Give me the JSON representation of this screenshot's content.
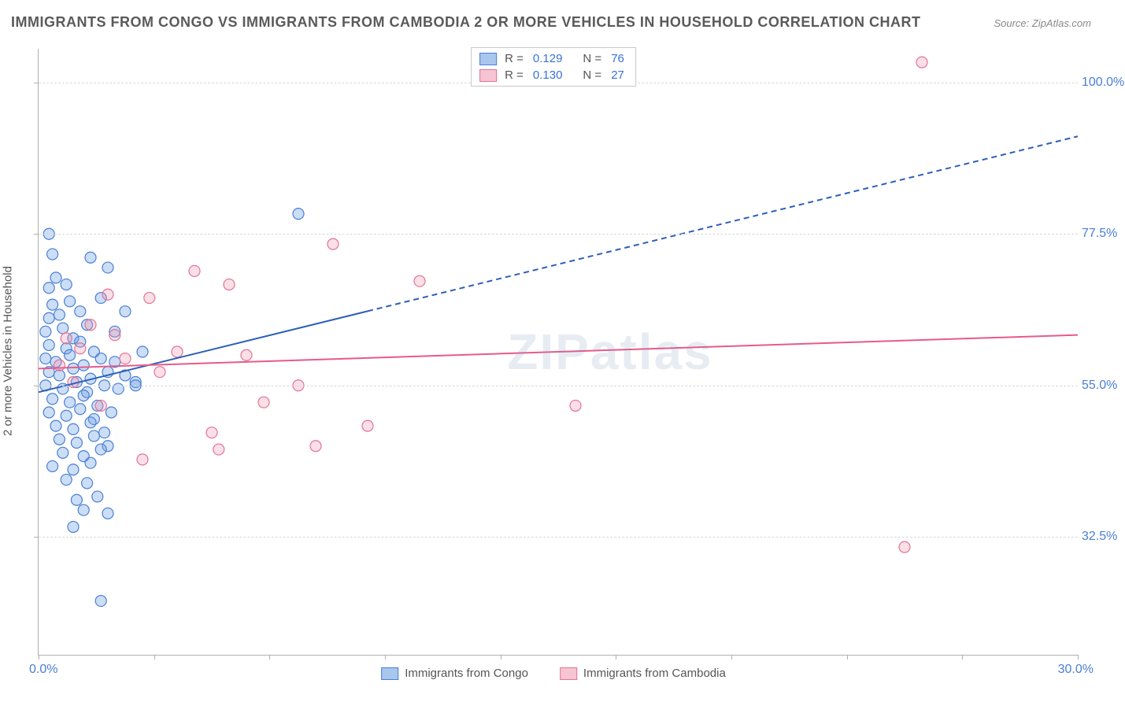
{
  "title": "IMMIGRANTS FROM CONGO VS IMMIGRANTS FROM CAMBODIA 2 OR MORE VEHICLES IN HOUSEHOLD CORRELATION CHART",
  "source_prefix": "Source: ",
  "source_name": "ZipAtlas.com",
  "y_axis_label": "2 or more Vehicles in Household",
  "watermark": "ZIPatlas",
  "chart": {
    "type": "scatter",
    "xlim": [
      0,
      30
    ],
    "ylim": [
      15,
      105
    ],
    "x_min_label": "0.0%",
    "x_max_label": "30.0%",
    "x_ticks": [
      0,
      3.33,
      6.67,
      10,
      13.33,
      16.67,
      20,
      23.33,
      26.67,
      30
    ],
    "y_ticks_minor": [
      32.5,
      55.0,
      77.5,
      100.0
    ],
    "y_gridlines": [
      {
        "value": 32.5,
        "label": "32.5%"
      },
      {
        "value": 55.0,
        "label": "55.0%"
      },
      {
        "value": 77.5,
        "label": "77.5%"
      },
      {
        "value": 100.0,
        "label": "100.0%"
      }
    ],
    "grid_color": "#d8d8d8",
    "axis_color": "#b0b0b0",
    "background_color": "#ffffff",
    "marker_radius": 7,
    "marker_stroke_width": 1.2,
    "series": [
      {
        "id": "congo",
        "name": "Immigrants from Congo",
        "fill": "rgba(110,160,225,0.35)",
        "stroke": "#4a7fd6",
        "swatch_fill": "#a9c6ed",
        "swatch_border": "#4a7fd6",
        "R": "0.129",
        "N": "76",
        "trend": {
          "x1": 0,
          "y1": 54.0,
          "x2": 30,
          "y2": 92.0,
          "solid_until_x": 9.5,
          "stroke": "#2d5fb8",
          "width": 2,
          "dash": "7,5"
        },
        "points": [
          [
            0.3,
            77.5
          ],
          [
            0.4,
            74.5
          ],
          [
            0.5,
            71.0
          ],
          [
            0.3,
            69.5
          ],
          [
            0.8,
            70.0
          ],
          [
            0.4,
            67.0
          ],
          [
            0.9,
            67.5
          ],
          [
            0.3,
            65.0
          ],
          [
            0.6,
            65.5
          ],
          [
            1.2,
            66.0
          ],
          [
            0.2,
            63.0
          ],
          [
            0.7,
            63.5
          ],
          [
            1.0,
            62.0
          ],
          [
            1.4,
            64.0
          ],
          [
            0.3,
            61.0
          ],
          [
            0.8,
            60.5
          ],
          [
            1.2,
            61.5
          ],
          [
            1.6,
            60.0
          ],
          [
            0.2,
            59.0
          ],
          [
            0.5,
            58.5
          ],
          [
            0.9,
            59.5
          ],
          [
            1.3,
            58.0
          ],
          [
            1.8,
            59.0
          ],
          [
            2.2,
            58.5
          ],
          [
            0.3,
            57.0
          ],
          [
            0.6,
            56.5
          ],
          [
            1.0,
            57.5
          ],
          [
            1.5,
            56.0
          ],
          [
            2.0,
            57.0
          ],
          [
            2.5,
            56.5
          ],
          [
            0.2,
            55.0
          ],
          [
            0.7,
            54.5
          ],
          [
            1.1,
            55.5
          ],
          [
            1.4,
            54.0
          ],
          [
            1.9,
            55.0
          ],
          [
            2.3,
            54.5
          ],
          [
            2.8,
            55.5
          ],
          [
            0.4,
            53.0
          ],
          [
            0.9,
            52.5
          ],
          [
            1.3,
            53.5
          ],
          [
            1.7,
            52.0
          ],
          [
            0.3,
            51.0
          ],
          [
            0.8,
            50.5
          ],
          [
            1.2,
            51.5
          ],
          [
            1.6,
            50.0
          ],
          [
            2.1,
            51.0
          ],
          [
            0.5,
            49.0
          ],
          [
            1.0,
            48.5
          ],
          [
            1.5,
            49.5
          ],
          [
            1.9,
            48.0
          ],
          [
            0.6,
            47.0
          ],
          [
            1.1,
            46.5
          ],
          [
            1.6,
            47.5
          ],
          [
            2.0,
            46.0
          ],
          [
            0.7,
            45.0
          ],
          [
            1.3,
            44.5
          ],
          [
            1.8,
            45.5
          ],
          [
            0.4,
            43.0
          ],
          [
            1.0,
            42.5
          ],
          [
            1.5,
            43.5
          ],
          [
            0.8,
            41.0
          ],
          [
            1.4,
            40.5
          ],
          [
            1.1,
            38.0
          ],
          [
            1.7,
            38.5
          ],
          [
            1.3,
            36.5
          ],
          [
            2.0,
            36.0
          ],
          [
            1.5,
            74.0
          ],
          [
            2.0,
            72.5
          ],
          [
            1.8,
            68.0
          ],
          [
            2.5,
            66.0
          ],
          [
            2.2,
            63.0
          ],
          [
            3.0,
            60.0
          ],
          [
            2.8,
            55.0
          ],
          [
            7.5,
            80.5
          ],
          [
            1.0,
            34.0
          ],
          [
            1.8,
            23.0
          ]
        ]
      },
      {
        "id": "cambodia",
        "name": "Immigrants from Cambodia",
        "fill": "rgba(240,150,175,0.30)",
        "stroke": "#e27396",
        "swatch_fill": "#f6c4d2",
        "swatch_border": "#e27396",
        "R": "0.130",
        "N": "27",
        "trend": {
          "x1": 0,
          "y1": 57.5,
          "x2": 30,
          "y2": 62.5,
          "solid_until_x": 30,
          "stroke": "#e85a89",
          "width": 2,
          "dash": "none"
        },
        "points": [
          [
            0.8,
            62.0
          ],
          [
            1.2,
            60.5
          ],
          [
            0.6,
            58.0
          ],
          [
            1.5,
            64.0
          ],
          [
            1.0,
            55.5
          ],
          [
            2.0,
            68.5
          ],
          [
            1.8,
            52.0
          ],
          [
            2.5,
            59.0
          ],
          [
            3.0,
            44.0
          ],
          [
            2.2,
            62.5
          ],
          [
            3.5,
            57.0
          ],
          [
            4.0,
            60.0
          ],
          [
            3.2,
            68.0
          ],
          [
            4.5,
            72.0
          ],
          [
            5.0,
            48.0
          ],
          [
            5.5,
            70.0
          ],
          [
            6.0,
            59.5
          ],
          [
            5.2,
            45.5
          ],
          [
            6.5,
            52.5
          ],
          [
            8.0,
            46.0
          ],
          [
            7.5,
            55.0
          ],
          [
            8.5,
            76.0
          ],
          [
            9.5,
            49.0
          ],
          [
            11.0,
            70.5
          ],
          [
            15.5,
            52.0
          ],
          [
            25.5,
            103.0
          ],
          [
            25.0,
            31.0
          ]
        ]
      }
    ]
  },
  "legend_top": {
    "R_label": "R =",
    "N_label": "N ="
  },
  "colors": {
    "title": "#5a5a5a",
    "tick_label": "#4a7fd6",
    "axis_label": "#555555"
  }
}
